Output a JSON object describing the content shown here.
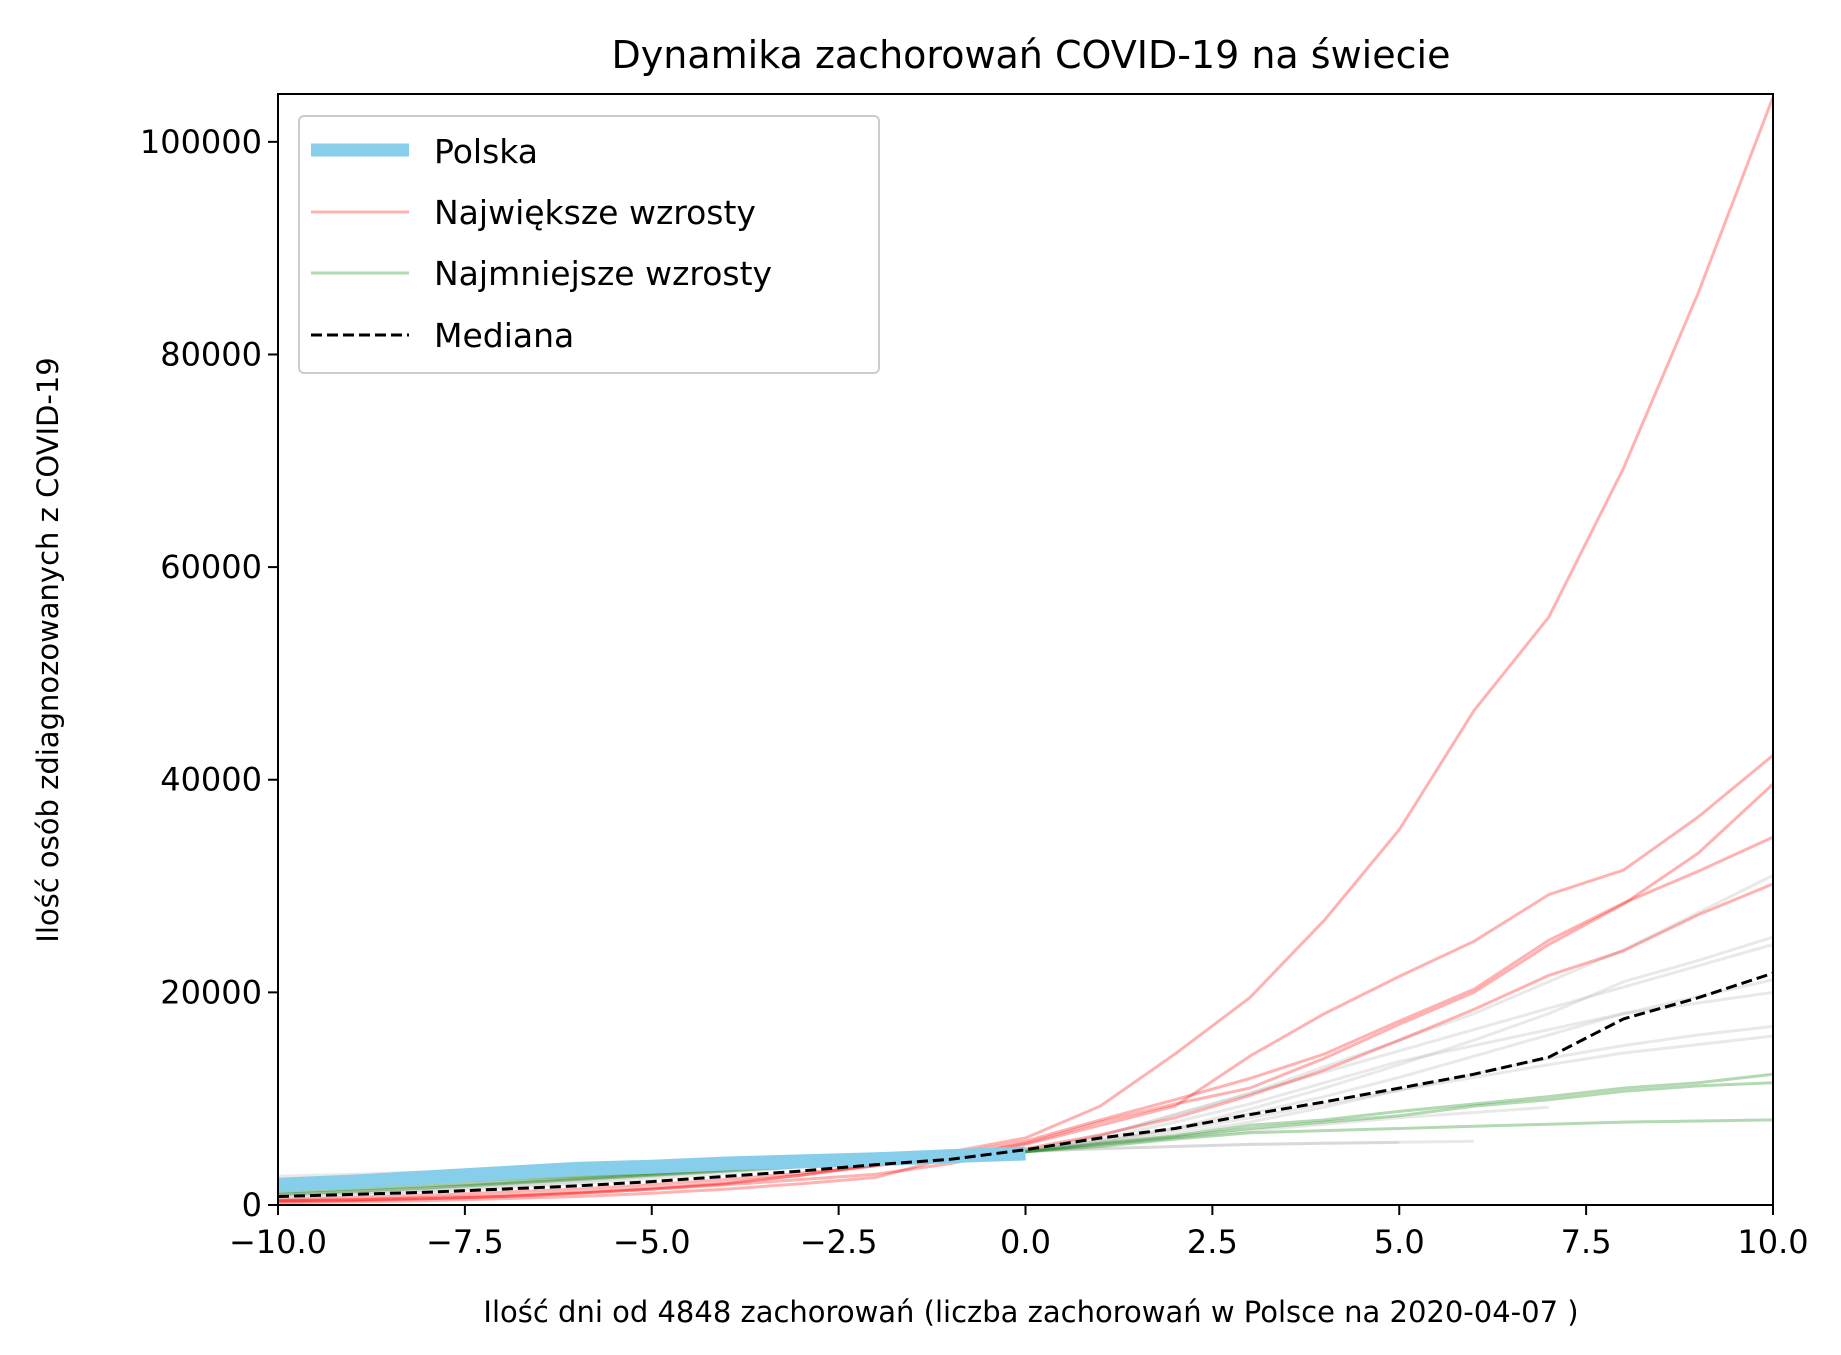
{
  "chart_data": {
    "type": "line",
    "title": "Dynamika zachorowań COVID-19 na świecie",
    "xlabel": "Ilość dni od 4848 zachorowań (liczba zachorowań w Polsce na 2020-04-07 )",
    "ylabel": "Ilość osób zdiagnozowanych z COVID-19",
    "xlim": [
      -10,
      10
    ],
    "ylim": [
      0,
      104500
    ],
    "xticks": [
      -10,
      -7.5,
      -5,
      -2.5,
      0,
      2.5,
      5,
      7.5,
      10
    ],
    "xtick_labels": [
      "−10.0",
      "−7.5",
      "−5.0",
      "−2.5",
      "0.0",
      "2.5",
      "5.0",
      "7.5",
      "10.0"
    ],
    "yticks": [
      0,
      20000,
      40000,
      60000,
      80000,
      100000
    ],
    "ytick_labels": [
      "0",
      "20000",
      "40000",
      "60000",
      "80000",
      "100000"
    ],
    "grid": false,
    "legend": {
      "position": "top-left",
      "entries": [
        {
          "label": "Polska",
          "series": "polska",
          "color": "#87ceeb"
        },
        {
          "label": "Największe wzrosty",
          "series": "largest",
          "color": "#ff0000"
        },
        {
          "label": "Najmniejsze wzrosty",
          "series": "smallest",
          "color": "#008000"
        },
        {
          "label": "Mediana",
          "series": "median",
          "color": "#000000"
        }
      ]
    },
    "series": [
      {
        "group": "other",
        "color": "#b0b0b0",
        "x": [
          -10,
          -9,
          -8,
          -7,
          -6,
          -5,
          -4,
          -3,
          -2,
          -1,
          0,
          1,
          2,
          3,
          4,
          5,
          6,
          7,
          8,
          9,
          10
        ],
        "y": [
          2700,
          2900,
          3100,
          3300,
          3500,
          3700,
          3900,
          4100,
          4400,
          4700,
          5100,
          6000,
          7200,
          9000,
          11000,
          13200,
          15500,
          18000,
          21000,
          23000,
          25200
        ]
      },
      {
        "group": "other",
        "color": "#b0b0b0",
        "x": [
          -10,
          -9,
          -8,
          -7,
          -6,
          -5,
          -4,
          -3,
          -2,
          -1,
          0,
          1,
          2,
          3,
          4,
          5,
          6,
          7,
          8,
          9,
          10
        ],
        "y": [
          1800,
          2100,
          2400,
          2700,
          3000,
          3300,
          3600,
          3900,
          4200,
          4600,
          5000,
          6500,
          8500,
          10500,
          13000,
          15500,
          18000,
          21000,
          24000,
          27500,
          31000
        ]
      },
      {
        "group": "other",
        "color": "#b0b0b0",
        "x": [
          -10,
          -9,
          -8,
          -7,
          -6,
          -5,
          -4,
          -3,
          -2,
          -1,
          0,
          1,
          2,
          3,
          4,
          5,
          6,
          7,
          8,
          9,
          10
        ],
        "y": [
          1200,
          1500,
          1800,
          2200,
          2600,
          3000,
          3400,
          3800,
          4200,
          4600,
          5000,
          6200,
          7800,
          9500,
          11500,
          13500,
          15000,
          16500,
          18000,
          19000,
          20000
        ]
      },
      {
        "group": "other",
        "color": "#b0b0b0",
        "x": [
          -10,
          -9,
          -8,
          -7,
          -6,
          -5,
          -4,
          -3,
          -2,
          -1,
          0,
          1,
          2,
          3,
          4,
          5,
          6,
          7,
          8,
          9,
          10
        ],
        "y": [
          900,
          1200,
          1500,
          1900,
          2300,
          2800,
          3300,
          3800,
          4300,
          4700,
          5100,
          5800,
          6700,
          7800,
          9200,
          10800,
          12300,
          13800,
          15000,
          16000,
          16800
        ]
      },
      {
        "group": "other",
        "color": "#b0b0b0",
        "x": [
          -10,
          -9,
          -8,
          -7,
          -6,
          -5,
          -4,
          -3,
          -2,
          -1,
          0,
          1,
          2,
          3,
          4,
          5,
          6,
          7,
          8,
          9,
          10
        ],
        "y": [
          1500,
          1800,
          2100,
          2400,
          2800,
          3200,
          3600,
          4000,
          4400,
          4800,
          5100,
          5900,
          7000,
          8200,
          9500,
          10800,
          12000,
          13200,
          14300,
          15100,
          15900
        ]
      },
      {
        "group": "other",
        "color": "#b0b0b0",
        "x": [
          -10,
          -9,
          -8,
          -7,
          -6,
          -5,
          -4,
          -3,
          -2,
          -1,
          0,
          1,
          2,
          3,
          4,
          5,
          6,
          7,
          8,
          9,
          10
        ],
        "y": [
          600,
          900,
          1200,
          1600,
          2000,
          2500,
          3000,
          3600,
          4200,
          4700,
          5100,
          6500,
          8500,
          10500,
          12500,
          14500,
          16500,
          18500,
          20500,
          22500,
          24500
        ]
      },
      {
        "group": "other",
        "color": "#b0b0b0",
        "x": [
          -10,
          -9,
          -8,
          -7,
          -6,
          -5,
          -4,
          -3,
          -2,
          -1,
          0,
          1,
          2,
          3,
          4,
          5,
          6,
          7
        ],
        "y": [
          2000,
          2300,
          2600,
          2900,
          3200,
          3500,
          3800,
          4100,
          4400,
          4700,
          5000,
          5600,
          6300,
          7000,
          7600,
          8200,
          8700,
          9200
        ]
      },
      {
        "group": "other",
        "color": "#b0b0b0",
        "x": [
          -10,
          -9,
          -8,
          -7,
          -6,
          -5,
          -4,
          -3,
          -2,
          -1,
          0,
          1,
          2,
          3,
          4,
          5,
          6
        ],
        "y": [
          2200,
          2500,
          2800,
          3100,
          3400,
          3700,
          4000,
          4300,
          4600,
          4900,
          5100,
          5300,
          5500,
          5700,
          5800,
          5900,
          6000
        ]
      },
      {
        "group": "other",
        "color": "#b0b0b0",
        "x": [
          -10,
          -9,
          -8,
          -7,
          -6,
          -5,
          -4,
          -3,
          -2,
          -1,
          0,
          1,
          2,
          3,
          4,
          5
        ],
        "y": [
          1000,
          1300,
          1600,
          2000,
          2400,
          2800,
          3200,
          3600,
          4000,
          4500,
          5000,
          5300,
          5500,
          5700,
          5800,
          5900
        ]
      },
      {
        "group": "other",
        "color": "#b0b0b0",
        "x": [
          -10,
          -9,
          -8,
          -7,
          -6,
          -5,
          -4,
          -3,
          -2,
          -1,
          0,
          1,
          2,
          3,
          4,
          5,
          6,
          7,
          8,
          9,
          10
        ],
        "y": [
          800,
          1100,
          1400,
          1800,
          2200,
          2700,
          3200,
          3700,
          4200,
          4700,
          5100,
          6000,
          7200,
          8600,
          10200,
          12000,
          14000,
          16000,
          18000,
          19600,
          21200
        ]
      },
      {
        "group": "largest",
        "color": "#ff0000",
        "x": [
          -10,
          -9,
          -8,
          -7,
          -6,
          -5,
          -4,
          -3,
          -2,
          -1,
          0,
          1,
          2,
          3,
          4,
          5,
          6,
          7,
          8,
          9,
          10
        ],
        "y": [
          300,
          400,
          600,
          800,
          1100,
          1500,
          2000,
          2800,
          3800,
          5000,
          6300,
          9300,
          14200,
          19500,
          26800,
          35300,
          46500,
          55300,
          69300,
          85800,
          104200
        ]
      },
      {
        "group": "largest",
        "color": "#ff0000",
        "x": [
          -10,
          -9,
          -8,
          -7,
          -6,
          -5,
          -4,
          -3,
          -2,
          -1,
          0,
          1,
          2,
          3,
          4,
          5,
          6,
          7,
          8,
          9,
          10
        ],
        "y": [
          400,
          500,
          700,
          900,
          1200,
          1600,
          2100,
          2800,
          3700,
          4800,
          6000,
          8000,
          9900,
          11900,
          14200,
          17300,
          20300,
          24900,
          28400,
          31400,
          34600
        ]
      },
      {
        "group": "largest",
        "color": "#ff0000",
        "x": [
          -10,
          -9,
          -8,
          -7,
          -6,
          -5,
          -4,
          -3,
          -2,
          -1,
          0,
          1,
          2,
          3,
          4,
          5,
          6,
          7,
          8,
          9,
          10
        ],
        "y": [
          200,
          300,
          400,
          600,
          800,
          1100,
          1500,
          2000,
          2600,
          4500,
          5800,
          7800,
          9500,
          11000,
          13800,
          17000,
          20000,
          24500,
          28300,
          33100,
          39600
        ]
      },
      {
        "group": "largest",
        "color": "#ff0000",
        "x": [
          -10,
          -9,
          -8,
          -7,
          -6,
          -5,
          -4,
          -3,
          -2,
          -1,
          0,
          1,
          2,
          3,
          4,
          5,
          6,
          7,
          8,
          9,
          10
        ],
        "y": [
          500,
          700,
          900,
          1200,
          1500,
          1900,
          2400,
          3000,
          3700,
          4600,
          5700,
          7500,
          9300,
          14000,
          18000,
          21500,
          24800,
          29200,
          31500,
          36500,
          42300
        ]
      },
      {
        "group": "largest",
        "color": "#ff0000",
        "x": [
          -10,
          -9,
          -8,
          -7,
          -6,
          -5,
          -4,
          -3,
          -2,
          -1,
          0,
          1,
          2,
          3,
          4,
          5,
          6,
          7,
          8,
          9,
          10
        ],
        "y": [
          400,
          500,
          600,
          800,
          1100,
          1500,
          1900,
          2400,
          2900,
          3900,
          5300,
          6600,
          8200,
          10300,
          12700,
          15500,
          18400,
          21600,
          23900,
          27300,
          30200
        ]
      },
      {
        "group": "smallest",
        "color": "#008000",
        "x": [
          -10,
          -9,
          -8,
          -7,
          -6,
          -5,
          -4,
          -3,
          -2,
          -1,
          0,
          1,
          2,
          3,
          4,
          5,
          6,
          7,
          8,
          9,
          10
        ],
        "y": [
          1500,
          1800,
          2100,
          2400,
          2700,
          3000,
          3400,
          3800,
          4200,
          4600,
          5000,
          5800,
          6500,
          7500,
          8000,
          8800,
          9500,
          10200,
          11000,
          11500,
          12300
        ]
      },
      {
        "group": "smallest",
        "color": "#008000",
        "x": [
          -10,
          -9,
          -8,
          -7,
          -6,
          -5,
          -4,
          -3,
          -2,
          -1,
          0,
          1,
          2,
          3,
          4,
          5,
          6,
          7,
          8,
          9,
          10
        ],
        "y": [
          1200,
          1500,
          1800,
          2100,
          2500,
          2900,
          3300,
          3700,
          4100,
          4600,
          5000,
          5700,
          6400,
          7200,
          7800,
          8400,
          9300,
          9900,
          10700,
          11200,
          11500
        ]
      },
      {
        "group": "smallest",
        "color": "#008000",
        "x": [
          -10,
          -9,
          -8,
          -7,
          -6,
          -5,
          -4,
          -3,
          -2,
          -1,
          0,
          1,
          2,
          3,
          4,
          5,
          6,
          7,
          8,
          9,
          10
        ],
        "y": [
          1000,
          1300,
          1600,
          2000,
          2400,
          2800,
          3200,
          3600,
          4100,
          4600,
          5000,
          5500,
          6200,
          6800,
          7000,
          7200,
          7400,
          7600,
          7800,
          7900,
          8000
        ]
      },
      {
        "group": "polska",
        "name": "Polska",
        "color": "#87ceeb",
        "x": [
          -10,
          -9,
          -8,
          -7,
          -6,
          -5,
          -4,
          -3,
          -2,
          -1,
          0
        ],
        "y": [
          1900,
          2200,
          2600,
          3000,
          3400,
          3600,
          3900,
          4100,
          4300,
          4600,
          4848
        ]
      },
      {
        "group": "median",
        "name": "Mediana",
        "color": "#000000",
        "x": [
          -10,
          -9,
          -8,
          -7,
          -6,
          -5,
          -4,
          -3,
          -2,
          -1,
          0,
          1,
          2,
          3,
          4,
          5,
          6,
          7,
          8,
          9,
          10
        ],
        "y": [
          800,
          1000,
          1200,
          1500,
          1800,
          2200,
          2700,
          3200,
          3800,
          4300,
          5200,
          6300,
          7200,
          8500,
          9700,
          11000,
          12300,
          13900,
          17500,
          19500,
          21800
        ]
      }
    ]
  }
}
